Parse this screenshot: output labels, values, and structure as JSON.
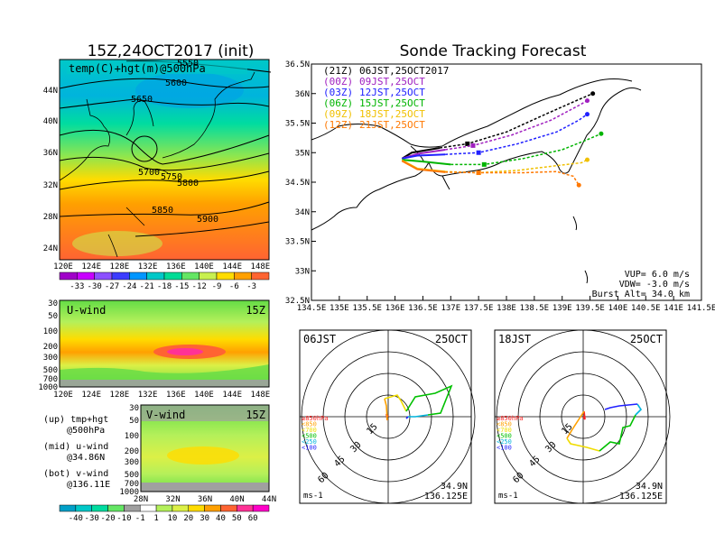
{
  "left_title": "15Z,24OCT2017 (init)",
  "main_title": "Sonde Tracking Forecast",
  "top_map": {
    "label": "temp(C)+hgt(m)@500hPa",
    "contours": [
      "5550",
      "5600",
      "5650",
      "5700",
      "5750",
      "5800",
      "5850",
      "5900"
    ],
    "lon_ticks": [
      "120E",
      "124E",
      "128E",
      "132E",
      "136E",
      "140E",
      "144E",
      "148E"
    ],
    "lat_ticks": [
      "44N",
      "40N",
      "36N",
      "32N",
      "28N",
      "24N"
    ],
    "colorbar": [
      "-33",
      "-30",
      "-27",
      "-24",
      "-21",
      "-18",
      "-15",
      "-12",
      "-9",
      "-6",
      "-3"
    ],
    "colorbar_colors": [
      "#a000c8",
      "#c800ff",
      "#8c50ff",
      "#3c3cff",
      "#0096ff",
      "#00c8c8",
      "#00dc96",
      "#64e664",
      "#c8f050",
      "#ffdc00",
      "#ffa000",
      "#ff6432"
    ]
  },
  "uwind": {
    "label": "U-wind",
    "time": "15Z",
    "p_ticks": [
      "30",
      "50",
      "100",
      "200",
      "300",
      "500",
      "700",
      "1000"
    ],
    "lon_ticks": [
      "120E",
      "124E",
      "128E",
      "132E",
      "136E",
      "140E",
      "144E",
      "148E"
    ]
  },
  "vwind": {
    "label": "V-wind",
    "time": "15Z",
    "p_ticks": [
      "30",
      "50",
      "100",
      "200",
      "300",
      "500",
      "700",
      "1000"
    ],
    "lat_ticks": [
      "28N",
      "32N",
      "36N",
      "40N",
      "44N"
    ]
  },
  "wind_colorbar": {
    "labels": [
      "-40",
      "-30",
      "-20",
      "-10",
      "-1",
      "1",
      "10",
      "20",
      "30",
      "40",
      "50",
      "60"
    ],
    "colors": [
      "#00a0c8",
      "#00c8c8",
      "#00dca0",
      "#64e664",
      "#a0a0a0",
      "#ffffff",
      "#b4f05a",
      "#dcf046",
      "#ffdc00",
      "#ffa000",
      "#ff6432",
      "#ff3296",
      "#ff00c8"
    ]
  },
  "legend_notes": [
    {
      "line1": "(up) tmp+hgt",
      "line2": "@500hPa"
    },
    {
      "line1": "(mid) u-wind",
      "line2": "@34.86N"
    },
    {
      "line1": "(bot) v-wind",
      "line2": "@136.11E"
    }
  ],
  "track_map": {
    "lon_ticks": [
      "134.5E",
      "135E",
      "135.5E",
      "136E",
      "136.5E",
      "137E",
      "137.5E",
      "138E",
      "138.5E",
      "139E",
      "139.5E",
      "140E",
      "140.5E",
      "141E",
      "141.5E"
    ],
    "lat_ticks": [
      "36.5N",
      "36N",
      "35.5N",
      "35N",
      "34.5N",
      "34N",
      "33.5N",
      "33N",
      "32.5N"
    ],
    "xlim": [
      134.5,
      141.5
    ],
    "ylim": [
      32.5,
      36.5
    ],
    "launches": [
      {
        "code": "(21Z)",
        "time": "06JST,25OCT2017",
        "color": "#000000"
      },
      {
        "code": "(00Z)",
        "time": "09JST,25OCT",
        "color": "#a020c0"
      },
      {
        "code": "(03Z)",
        "time": "12JST,25OCT",
        "color": "#2020ff"
      },
      {
        "code": "(06Z)",
        "time": "15JST,25OCT",
        "color": "#00b400"
      },
      {
        "code": "(09Z)",
        "time": "18JST,25OCT",
        "color": "#f0c000"
      },
      {
        "code": "(12Z)",
        "time": "21JST,25OCT",
        "color": "#ff7800"
      }
    ],
    "vup": "VUP=  6.0 m/s",
    "vdw": "VDW= -3.0 m/s",
    "burst": "Burst Alt= 34.0 km"
  },
  "chart_data": {
    "type": "line",
    "title": "Sonde Tracking Forecast",
    "xlim": [
      134.5,
      141.5
    ],
    "ylim": [
      32.5,
      36.5
    ],
    "series": [
      {
        "name": "(21Z) 06JST,25OCT2017",
        "color": "#000000",
        "x": [
          136.125,
          136.3,
          136.8,
          137.3,
          138.0,
          138.7,
          139.3,
          139.55
        ],
        "y": [
          34.9,
          35.0,
          35.08,
          35.15,
          35.35,
          35.65,
          35.9,
          36.0
        ]
      },
      {
        "name": "(00Z) 09JST,25OCT",
        "color": "#a020c0",
        "x": [
          136.125,
          136.4,
          136.9,
          137.4,
          138.1,
          138.8,
          139.3,
          139.45
        ],
        "y": [
          34.9,
          34.98,
          35.05,
          35.12,
          35.3,
          35.55,
          35.8,
          35.88
        ]
      },
      {
        "name": "(03Z) 12JST,25OCT",
        "color": "#2020ff",
        "x": [
          136.125,
          136.4,
          136.9,
          137.5,
          138.2,
          138.9,
          139.3,
          139.45
        ],
        "y": [
          34.9,
          34.95,
          34.97,
          35.0,
          35.15,
          35.35,
          35.55,
          35.65
        ]
      },
      {
        "name": "(06Z) 15JST,25OCT",
        "color": "#00b400",
        "x": [
          136.125,
          136.5,
          137.0,
          137.6,
          138.3,
          139.0,
          139.4,
          139.7
        ],
        "y": [
          34.88,
          34.85,
          34.8,
          34.8,
          34.9,
          35.05,
          35.2,
          35.32
        ]
      },
      {
        "name": "(09Z) 18JST,25OCT",
        "color": "#f0c000",
        "x": [
          136.125,
          136.4,
          136.9,
          137.5,
          138.2,
          138.9,
          139.35,
          139.45
        ],
        "y": [
          34.87,
          34.73,
          34.68,
          34.66,
          34.7,
          34.78,
          34.83,
          34.88
        ]
      },
      {
        "name": "(12Z) 21JST,25OCT",
        "color": "#ff7800",
        "x": [
          136.125,
          136.4,
          136.9,
          137.5,
          138.3,
          138.9,
          139.2,
          139.3
        ],
        "y": [
          34.86,
          34.72,
          34.67,
          34.66,
          34.66,
          34.68,
          34.6,
          34.45
        ]
      }
    ]
  },
  "hodo_left": {
    "time": "06JST",
    "date": "25OCT",
    "unit": "ms-1",
    "lat": "34.9N",
    "lon": "136.125E",
    "ring_labels": [
      "15",
      "30",
      "45",
      "60"
    ],
    "levels": [
      {
        "label": "≥850hPa",
        "color": "#ff2020"
      },
      {
        "label": "<850",
        "color": "#ffa000"
      },
      {
        "label": "<700",
        "color": "#f0dc00"
      },
      {
        "label": "<500",
        "color": "#00c000"
      },
      {
        "label": "<250",
        "color": "#00b4dc"
      },
      {
        "label": "<100",
        "color": "#2020ff"
      }
    ]
  },
  "hodo_right": {
    "time": "18JST",
    "date": "25OCT",
    "unit": "ms-1",
    "lat": "34.9N",
    "lon": "136.125E",
    "ring_labels": [
      "15",
      "30",
      "45",
      "60"
    ],
    "levels": [
      {
        "label": "≥850hPa",
        "color": "#ff2020"
      },
      {
        "label": "<850",
        "color": "#ffa000"
      },
      {
        "label": "<700",
        "color": "#f0dc00"
      },
      {
        "label": "<500",
        "color": "#00c000"
      },
      {
        "label": "<250",
        "color": "#00b4dc"
      },
      {
        "label": "<100",
        "color": "#2020ff"
      }
    ]
  }
}
